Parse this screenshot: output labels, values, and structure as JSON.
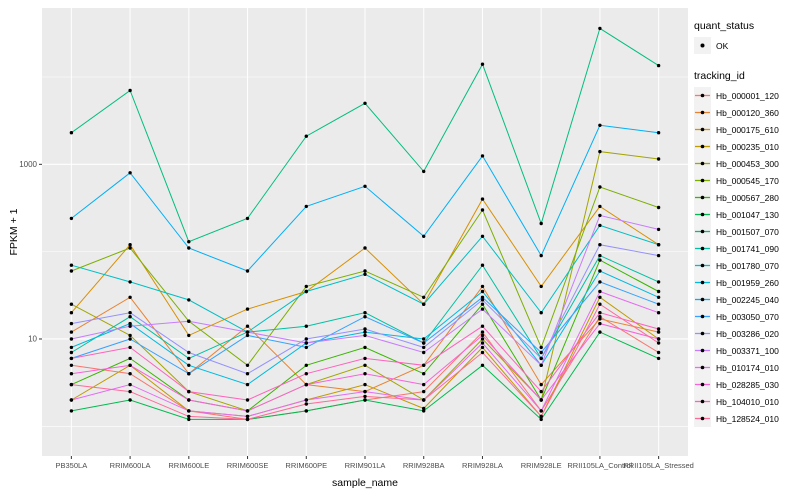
{
  "figure": {
    "background": "#FFFFFF",
    "panel_background": "#EBEBEB",
    "grid_color": "#FFFFFF",
    "tick_label_color": "#4D4D4D"
  },
  "axes": {
    "x_title": "sample_name",
    "y_title": "FPKM + 1",
    "y_tick_labels": [
      "1000",
      "10"
    ]
  },
  "legend": {
    "quant_status": {
      "title": "quant_status",
      "items": [
        {
          "label": "OK",
          "symbol": "point",
          "color": "#000000"
        }
      ]
    },
    "tracking_id": {
      "title": "tracking_id"
    }
  },
  "chart_data": {
    "type": "line",
    "title": "",
    "xlabel": "sample_name",
    "ylabel": "FPKM + 1",
    "y_scale": "log10",
    "y_ticks": [
      10,
      1000
    ],
    "ylim": [
      0.5,
      40000
    ],
    "grid": true,
    "legend_position": "right",
    "point_color": "#000000",
    "quant_status": "OK",
    "categories": [
      "PB350LA",
      "RRIM600LA",
      "RRIM600LE",
      "RRIM600SE",
      "RRIM600PE",
      "RRIM901LA",
      "RRIM928BA",
      "RRIM928LA",
      "RRIM928LE",
      "RRII105LA_Control",
      "RRII105LA_Stressed"
    ],
    "series": [
      {
        "name": "Hb_000001_120",
        "color": "#F8766D",
        "values": [
          5,
          4,
          1.5,
          1.2,
          1.5,
          2,
          2.5,
          12,
          1.5,
          18,
          7
        ]
      },
      {
        "name": "Hb_000120_360",
        "color": "#EA8331",
        "values": [
          12,
          30,
          4,
          14,
          3,
          2.5,
          5,
          40,
          3,
          17,
          12
        ]
      },
      {
        "name": "Hb_000175_610",
        "color": "#D89000",
        "values": [
          20,
          120,
          11,
          22,
          35,
          110,
          25,
          400,
          40,
          330,
          120
        ]
      },
      {
        "name": "Hb_000235_010",
        "color": "#C09B00",
        "values": [
          2,
          5,
          1.5,
          1.3,
          2,
          3,
          1.6,
          8,
          1.3,
          30,
          10
        ]
      },
      {
        "name": "Hb_000453_300",
        "color": "#A3A500",
        "values": [
          25,
          11,
          2.5,
          1.5,
          3,
          5,
          2,
          10,
          2,
          1400,
          1150
        ]
      },
      {
        "name": "Hb_000545_170",
        "color": "#7CAE00",
        "values": [
          60,
          110,
          16,
          5,
          40,
          60,
          30,
          300,
          8,
          550,
          320
        ]
      },
      {
        "name": "Hb_000567_280",
        "color": "#39B600",
        "values": [
          3,
          6,
          2,
          1.5,
          5,
          8,
          4,
          25,
          2,
          80,
          35
        ]
      },
      {
        "name": "Hb_001047_130",
        "color": "#00BB4E",
        "values": [
          1.5,
          2,
          1.2,
          1.2,
          1.5,
          2,
          1.5,
          5,
          1.2,
          12,
          6
        ]
      },
      {
        "name": "Hb_001507_070",
        "color": "#00BF7D",
        "values": [
          2300,
          7000,
          130,
          240,
          2100,
          5000,
          830,
          14000,
          210,
          36000,
          13500
        ]
      },
      {
        "name": "Hb_001741_090",
        "color": "#00C1A3",
        "values": [
          7,
          18,
          6,
          12,
          14,
          20,
          9,
          70,
          6,
          90,
          45
        ]
      },
      {
        "name": "Hb_001780_070",
        "color": "#00BFC4",
        "values": [
          70,
          45,
          28,
          12,
          35,
          55,
          25,
          150,
          20,
          200,
          120
        ]
      },
      {
        "name": "Hb_001959_260",
        "color": "#00BAE0",
        "values": [
          8,
          15,
          5,
          3,
          9,
          12,
          10,
          35,
          5,
          60,
          30
        ]
      },
      {
        "name": "Hb_002245_040",
        "color": "#00B0F6",
        "values": [
          240,
          800,
          110,
          60,
          330,
          560,
          150,
          1250,
          90,
          2800,
          2300
        ]
      },
      {
        "name": "Hb_003050_070",
        "color": "#35A2FF",
        "values": [
          6,
          10,
          4,
          11,
          8,
          18,
          9,
          30,
          7,
          45,
          25
        ]
      },
      {
        "name": "Hb_003286_020",
        "color": "#9590FF",
        "values": [
          15,
          20,
          7,
          4,
          10,
          13,
          8,
          28,
          6,
          120,
          90
        ]
      },
      {
        "name": "Hb_003371_100",
        "color": "#C77CFF",
        "values": [
          10,
          14,
          16,
          12,
          9,
          11,
          7,
          22,
          5,
          260,
          180
        ]
      },
      {
        "name": "Hb_010174_010",
        "color": "#E76BF3",
        "values": [
          2,
          3,
          1.5,
          1.3,
          2,
          2.5,
          2,
          9,
          1.5,
          35,
          20
        ]
      },
      {
        "name": "Hb_028285_030",
        "color": "#FA62DB",
        "values": [
          4,
          5,
          2,
          1.5,
          3,
          4,
          3,
          11,
          2,
          15,
          10
        ]
      },
      {
        "name": "Hb_104010_010",
        "color": "#FF62BC",
        "values": [
          6,
          8,
          2.5,
          2,
          4,
          6,
          5,
          14,
          2.5,
          20,
          13
        ]
      },
      {
        "name": "Hb_128524_010",
        "color": "#FF6A98",
        "values": [
          3,
          2.5,
          1.3,
          1.2,
          1.8,
          2.2,
          2,
          7,
          1.3,
          25,
          9
        ]
      }
    ]
  }
}
